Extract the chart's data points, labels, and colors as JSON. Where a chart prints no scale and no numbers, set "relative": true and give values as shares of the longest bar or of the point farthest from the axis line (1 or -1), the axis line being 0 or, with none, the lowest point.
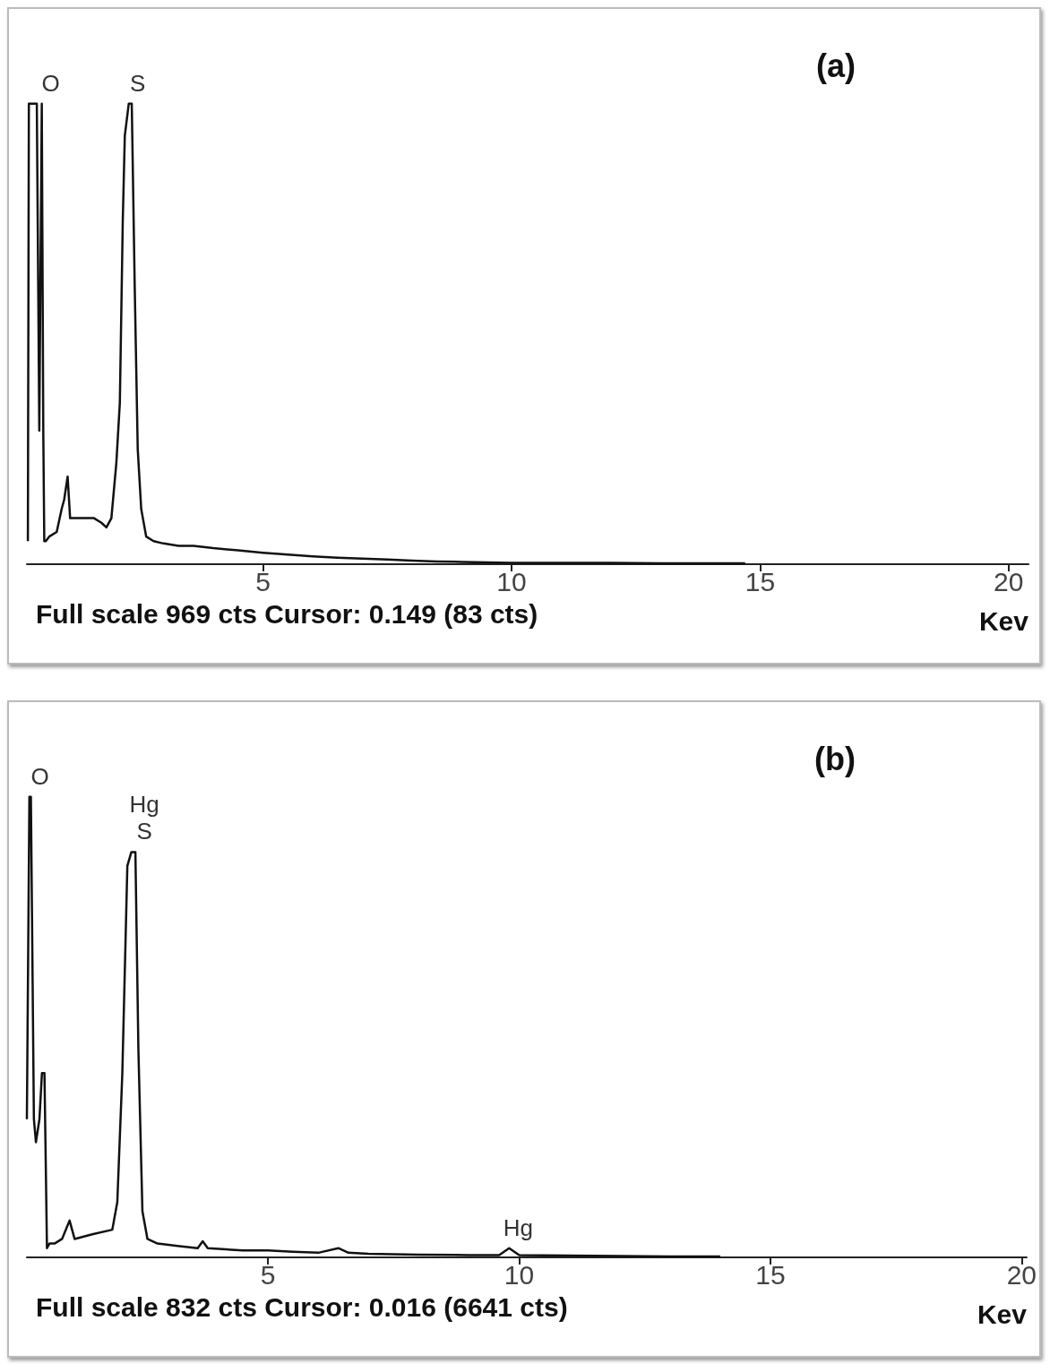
{
  "chart_data": [
    {
      "type": "line",
      "title": "(a)",
      "xlabel": "Kev",
      "relative": true,
      "xlim": [
        0.25,
        20.4
      ],
      "xticks": [
        5,
        10,
        15,
        20
      ],
      "grid": false,
      "marker": "none",
      "line_style": "solid",
      "annotations": [
        "Full scale 969 cts Cursor: 0.149 (83 cts)",
        {
          "text": "O",
          "x": 0.55,
          "y": 1
        },
        {
          "text": "S",
          "x": 2.3,
          "y": 1
        }
      ],
      "series": [
        {
          "color": "#111111",
          "x": [
            0.27,
            0.29,
            0.3,
            0.45,
            0.5,
            0.55,
            0.58,
            0.6,
            0.63,
            0.7,
            0.85,
            0.95,
            1.0,
            1.07,
            1.12,
            1.2,
            1.4,
            1.6,
            1.75,
            1.85,
            1.95,
            2.05,
            2.12,
            2.18,
            2.22,
            2.3,
            2.36,
            2.42,
            2.48,
            2.55,
            2.65,
            2.8,
            3.0,
            3.3,
            3.6,
            4.0,
            4.5,
            5.0,
            5.5,
            6.0,
            6.5,
            7.0,
            7.5,
            8.0,
            8.5,
            9.0,
            9.5,
            10.0,
            11.0,
            12.0,
            13.0,
            14.0,
            14.7
          ],
          "values": [
            0.05,
            1,
            1,
            1,
            0.29,
            1,
            0.29,
            0.05,
            0.05,
            0.06,
            0.07,
            0.12,
            0.14,
            0.19,
            0.1,
            0.1,
            0.1,
            0.1,
            0.09,
            0.08,
            0.1,
            0.22,
            0.35,
            0.75,
            0.93,
            1,
            1,
            0.6,
            0.25,
            0.12,
            0.06,
            0.05,
            0.045,
            0.04,
            0.04,
            0.035,
            0.03,
            0.025,
            0.021,
            0.017,
            0.014,
            0.012,
            0.01,
            0.008,
            0.006,
            0.005,
            0.004,
            0.003,
            0.003,
            0.003,
            0.002,
            0.002,
            0.002
          ]
        }
      ]
    },
    {
      "type": "line",
      "title": "(b)",
      "xlabel": "Kev",
      "relative": true,
      "xlim": [
        0.2,
        20.1
      ],
      "xticks": [
        5,
        10,
        15,
        20
      ],
      "grid": false,
      "marker": "none",
      "line_style": "solid",
      "annotations": [
        "Full scale 832 cts Cursor: 0.016 (6641 cts)",
        {
          "text": "O",
          "x": 0.28,
          "y": 1
        },
        {
          "text": "Hg",
          "x": 2.36,
          "y": 0.88
        },
        {
          "text": "S",
          "x": 2.36,
          "y": 0.88
        },
        {
          "text": "Hg",
          "x": 9.8,
          "y": 0.02
        }
      ],
      "series": [
        {
          "color": "#111111",
          "x": [
            0.2,
            0.25,
            0.28,
            0.34,
            0.38,
            0.45,
            0.5,
            0.55,
            0.6,
            0.65,
            0.75,
            0.9,
            1.05,
            1.15,
            1.5,
            1.9,
            2.0,
            2.1,
            2.2,
            2.28,
            2.36,
            2.42,
            2.5,
            2.6,
            2.8,
            3.2,
            3.6,
            3.7,
            3.8,
            4.5,
            5.0,
            5.5,
            6.0,
            6.4,
            6.6,
            7.0,
            8.0,
            9.0,
            9.6,
            9.8,
            10.0,
            11.0,
            12.0,
            13.0,
            14.0
          ],
          "values": [
            0.3,
            1,
            1,
            0.3,
            0.25,
            0.3,
            0.4,
            0.4,
            0.02,
            0.03,
            0.03,
            0.04,
            0.08,
            0.04,
            0.05,
            0.06,
            0.12,
            0.4,
            0.85,
            0.88,
            0.88,
            0.45,
            0.1,
            0.04,
            0.03,
            0.025,
            0.02,
            0.035,
            0.02,
            0.015,
            0.015,
            0.012,
            0.01,
            0.02,
            0.01,
            0.008,
            0.006,
            0.005,
            0.005,
            0.02,
            0.005,
            0.004,
            0.003,
            0.002,
            0.002
          ]
        }
      ]
    }
  ]
}
